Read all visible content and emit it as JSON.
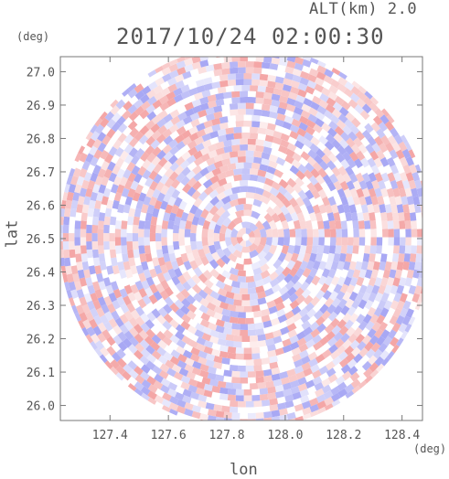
{
  "header": {
    "altitude_label": "ALT(km) 2.0",
    "timestamp": "2017/10/24 02:00:30"
  },
  "chart_data": {
    "type": "heatmap",
    "title": "2017/10/24 02:00:30",
    "subtitle": "ALT(km) 2.0",
    "xlabel": "lon",
    "ylabel": "lat",
    "x_unit": "(deg)",
    "y_unit": "(deg)",
    "xlim": [
      127.23,
      128.47
    ],
    "ylim": [
      25.955,
      27.045
    ],
    "x_ticks": [
      {
        "value": 127.4,
        "label": "127.4"
      },
      {
        "value": 127.6,
        "label": "127.6"
      },
      {
        "value": 127.8,
        "label": "127.8"
      },
      {
        "value": 128.0,
        "label": "128.0"
      },
      {
        "value": 128.2,
        "label": "128.2"
      },
      {
        "value": 128.4,
        "label": "128.4"
      }
    ],
    "y_ticks": [
      {
        "value": 26.0,
        "label": "26.0"
      },
      {
        "value": 26.1,
        "label": "26.1"
      },
      {
        "value": 26.2,
        "label": "26.2"
      },
      {
        "value": 26.3,
        "label": "26.3"
      },
      {
        "value": 26.4,
        "label": "26.4"
      },
      {
        "value": 26.5,
        "label": "26.5"
      },
      {
        "value": 26.6,
        "label": "26.6"
      },
      {
        "value": 26.7,
        "label": "26.7"
      },
      {
        "value": 26.8,
        "label": "26.8"
      },
      {
        "value": 26.9,
        "label": "26.9"
      },
      {
        "value": 27.0,
        "label": "27.0"
      }
    ],
    "radar_center": {
      "lon": 127.865,
      "lat": 26.504
    },
    "radar_radius_deg_lon": 0.64,
    "radar_radius_deg_lat": 0.575,
    "color_positive": "#f4a6a6",
    "color_negative": "#a8a8f4",
    "color_neutral": "#ffffff",
    "grid": false
  }
}
